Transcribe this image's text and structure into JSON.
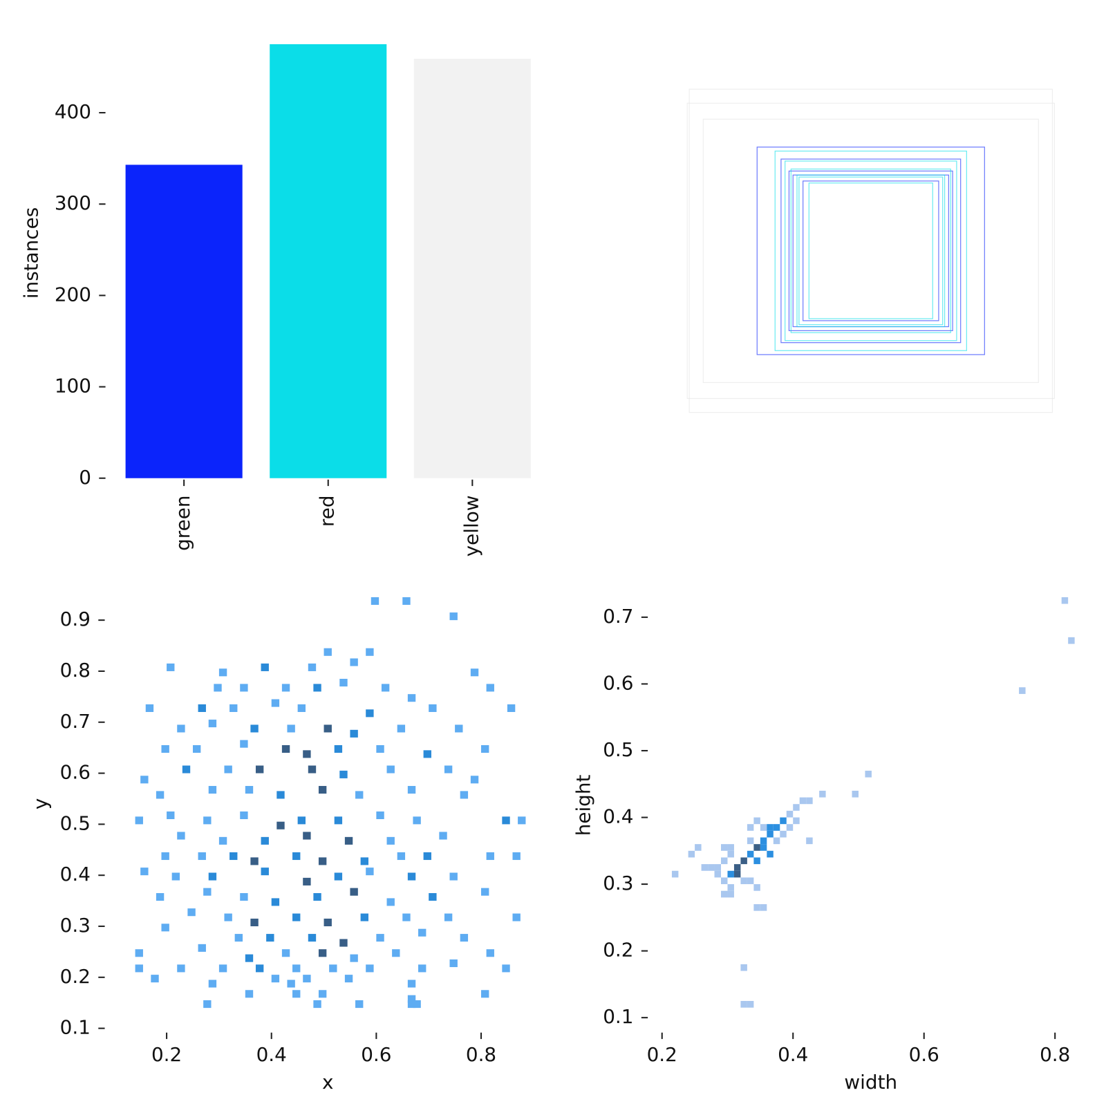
{
  "chart_data": [
    {
      "type": "bar",
      "ylabel": "instances",
      "categories": [
        "green",
        "red",
        "yellow"
      ],
      "values": [
        343,
        475,
        459
      ],
      "colors": [
        "#0b24fb",
        "#0bdde8",
        "#f2f2f2"
      ],
      "ylim": [
        0,
        475
      ],
      "yticks": [
        0,
        100,
        200,
        300,
        400
      ]
    },
    {
      "type": "boxes",
      "series": [
        {
          "name": "green",
          "color": "#0b24fb",
          "widths": [
            0.57,
            0.41,
            0.34,
            0.45,
            0.39
          ],
          "heights": [
            0.52,
            0.4,
            0.35,
            0.46,
            0.38
          ]
        },
        {
          "name": "red",
          "color": "#0bdde8",
          "widths": [
            0.48,
            0.43,
            0.37,
            0.4,
            0.31,
            0.36
          ],
          "heights": [
            0.5,
            0.45,
            0.38,
            0.41,
            0.34,
            0.37
          ]
        },
        {
          "name": "yellow",
          "color": "#e4e4e4",
          "widths": [
            0.91,
            0.84,
            0.92
          ],
          "heights": [
            0.81,
            0.66,
            0.74
          ]
        }
      ]
    },
    {
      "type": "heatmap",
      "xlabel": "x",
      "ylabel": "y",
      "xlim": [
        0.12,
        0.895
      ],
      "ylim": [
        0.1,
        0.945
      ],
      "xticks": [
        0.2,
        0.4,
        0.6,
        0.8
      ],
      "yticks": [
        0.1,
        0.2,
        0.3,
        0.4,
        0.5,
        0.6,
        0.7,
        0.8,
        0.9
      ],
      "xbin": 0.015,
      "ybin": 0.015,
      "colors": [
        "#5eacf2",
        "#2a8ad8",
        "#385e86"
      ],
      "cells": [
        [
          0.59,
          0.93,
          1
        ],
        [
          0.65,
          0.93,
          1
        ],
        [
          0.74,
          0.9,
          1
        ],
        [
          0.5,
          0.83,
          1
        ],
        [
          0.58,
          0.83,
          1
        ],
        [
          0.2,
          0.8,
          1
        ],
        [
          0.38,
          0.8,
          2
        ],
        [
          0.47,
          0.8,
          1
        ],
        [
          0.55,
          0.81,
          1
        ],
        [
          0.78,
          0.79,
          1
        ],
        [
          0.3,
          0.79,
          1
        ],
        [
          0.29,
          0.76,
          1
        ],
        [
          0.34,
          0.76,
          1
        ],
        [
          0.42,
          0.76,
          1
        ],
        [
          0.48,
          0.76,
          2
        ],
        [
          0.53,
          0.77,
          1
        ],
        [
          0.61,
          0.76,
          1
        ],
        [
          0.66,
          0.74,
          1
        ],
        [
          0.81,
          0.76,
          1
        ],
        [
          0.16,
          0.72,
          1
        ],
        [
          0.26,
          0.72,
          2
        ],
        [
          0.32,
          0.72,
          1
        ],
        [
          0.4,
          0.73,
          1
        ],
        [
          0.45,
          0.72,
          1
        ],
        [
          0.58,
          0.71,
          2
        ],
        [
          0.7,
          0.72,
          1
        ],
        [
          0.85,
          0.72,
          1
        ],
        [
          0.22,
          0.68,
          1
        ],
        [
          0.28,
          0.69,
          1
        ],
        [
          0.36,
          0.68,
          2
        ],
        [
          0.43,
          0.68,
          1
        ],
        [
          0.5,
          0.68,
          3
        ],
        [
          0.55,
          0.67,
          2
        ],
        [
          0.64,
          0.68,
          1
        ],
        [
          0.75,
          0.68,
          1
        ],
        [
          0.19,
          0.64,
          1
        ],
        [
          0.25,
          0.64,
          1
        ],
        [
          0.34,
          0.65,
          1
        ],
        [
          0.42,
          0.64,
          3
        ],
        [
          0.46,
          0.63,
          3
        ],
        [
          0.52,
          0.64,
          2
        ],
        [
          0.6,
          0.64,
          1
        ],
        [
          0.69,
          0.63,
          2
        ],
        [
          0.8,
          0.64,
          1
        ],
        [
          0.15,
          0.58,
          1
        ],
        [
          0.23,
          0.6,
          2
        ],
        [
          0.31,
          0.6,
          1
        ],
        [
          0.37,
          0.6,
          3
        ],
        [
          0.47,
          0.6,
          3
        ],
        [
          0.53,
          0.59,
          2
        ],
        [
          0.62,
          0.6,
          1
        ],
        [
          0.73,
          0.6,
          1
        ],
        [
          0.78,
          0.58,
          1
        ],
        [
          0.18,
          0.55,
          1
        ],
        [
          0.28,
          0.56,
          1
        ],
        [
          0.35,
          0.56,
          1
        ],
        [
          0.41,
          0.55,
          2
        ],
        [
          0.49,
          0.56,
          3
        ],
        [
          0.56,
          0.55,
          1
        ],
        [
          0.66,
          0.56,
          1
        ],
        [
          0.76,
          0.55,
          1
        ],
        [
          0.14,
          0.5,
          1
        ],
        [
          0.2,
          0.51,
          1
        ],
        [
          0.27,
          0.5,
          1
        ],
        [
          0.34,
          0.51,
          1
        ],
        [
          0.41,
          0.49,
          3
        ],
        [
          0.45,
          0.5,
          2
        ],
        [
          0.52,
          0.5,
          2
        ],
        [
          0.6,
          0.51,
          1
        ],
        [
          0.67,
          0.5,
          1
        ],
        [
          0.84,
          0.5,
          2
        ],
        [
          0.87,
          0.5,
          1
        ],
        [
          0.22,
          0.47,
          1
        ],
        [
          0.3,
          0.46,
          1
        ],
        [
          0.38,
          0.46,
          2
        ],
        [
          0.46,
          0.47,
          3
        ],
        [
          0.54,
          0.46,
          3
        ],
        [
          0.62,
          0.46,
          1
        ],
        [
          0.72,
          0.47,
          1
        ],
        [
          0.19,
          0.43,
          1
        ],
        [
          0.26,
          0.43,
          1
        ],
        [
          0.32,
          0.43,
          2
        ],
        [
          0.36,
          0.42,
          3
        ],
        [
          0.44,
          0.43,
          2
        ],
        [
          0.49,
          0.42,
          3
        ],
        [
          0.57,
          0.42,
          2
        ],
        [
          0.64,
          0.43,
          1
        ],
        [
          0.69,
          0.43,
          2
        ],
        [
          0.81,
          0.43,
          1
        ],
        [
          0.86,
          0.43,
          1
        ],
        [
          0.15,
          0.4,
          1
        ],
        [
          0.21,
          0.39,
          1
        ],
        [
          0.28,
          0.39,
          2
        ],
        [
          0.38,
          0.4,
          2
        ],
        [
          0.46,
          0.38,
          3
        ],
        [
          0.52,
          0.39,
          2
        ],
        [
          0.58,
          0.4,
          1
        ],
        [
          0.66,
          0.39,
          2
        ],
        [
          0.74,
          0.39,
          1
        ],
        [
          0.18,
          0.35,
          1
        ],
        [
          0.27,
          0.36,
          1
        ],
        [
          0.34,
          0.35,
          1
        ],
        [
          0.4,
          0.34,
          2
        ],
        [
          0.48,
          0.35,
          2
        ],
        [
          0.55,
          0.36,
          3
        ],
        [
          0.62,
          0.34,
          1
        ],
        [
          0.7,
          0.35,
          2
        ],
        [
          0.8,
          0.36,
          1
        ],
        [
          0.24,
          0.32,
          1
        ],
        [
          0.31,
          0.31,
          1
        ],
        [
          0.36,
          0.3,
          3
        ],
        [
          0.44,
          0.31,
          2
        ],
        [
          0.5,
          0.3,
          3
        ],
        [
          0.57,
          0.31,
          2
        ],
        [
          0.65,
          0.31,
          1
        ],
        [
          0.73,
          0.31,
          1
        ],
        [
          0.86,
          0.31,
          1
        ],
        [
          0.19,
          0.29,
          1
        ],
        [
          0.33,
          0.27,
          1
        ],
        [
          0.39,
          0.27,
          2
        ],
        [
          0.47,
          0.27,
          2
        ],
        [
          0.53,
          0.26,
          3
        ],
        [
          0.6,
          0.27,
          1
        ],
        [
          0.68,
          0.28,
          1
        ],
        [
          0.76,
          0.27,
          1
        ],
        [
          0.14,
          0.24,
          1
        ],
        [
          0.26,
          0.25,
          1
        ],
        [
          0.35,
          0.23,
          2
        ],
        [
          0.42,
          0.24,
          1
        ],
        [
          0.49,
          0.24,
          3
        ],
        [
          0.55,
          0.23,
          1
        ],
        [
          0.63,
          0.24,
          1
        ],
        [
          0.81,
          0.24,
          1
        ],
        [
          0.14,
          0.21,
          1
        ],
        [
          0.22,
          0.21,
          1
        ],
        [
          0.3,
          0.21,
          1
        ],
        [
          0.37,
          0.21,
          2
        ],
        [
          0.44,
          0.21,
          1
        ],
        [
          0.51,
          0.21,
          1
        ],
        [
          0.58,
          0.21,
          1
        ],
        [
          0.68,
          0.21,
          1
        ],
        [
          0.74,
          0.22,
          1
        ],
        [
          0.84,
          0.21,
          1
        ],
        [
          0.17,
          0.19,
          1
        ],
        [
          0.28,
          0.18,
          1
        ],
        [
          0.4,
          0.19,
          1
        ],
        [
          0.43,
          0.18,
          1
        ],
        [
          0.46,
          0.19,
          1
        ],
        [
          0.54,
          0.19,
          1
        ],
        [
          0.66,
          0.18,
          1
        ],
        [
          0.35,
          0.16,
          1
        ],
        [
          0.44,
          0.16,
          1
        ],
        [
          0.49,
          0.16,
          1
        ],
        [
          0.66,
          0.15,
          1
        ],
        [
          0.8,
          0.16,
          1
        ],
        [
          0.27,
          0.14,
          1
        ],
        [
          0.48,
          0.14,
          1
        ],
        [
          0.56,
          0.14,
          1
        ],
        [
          0.66,
          0.14,
          1
        ],
        [
          0.67,
          0.14,
          1
        ]
      ]
    },
    {
      "type": "heatmap",
      "xlabel": "width",
      "ylabel": "height",
      "xlim": [
        0.2,
        0.83
      ],
      "ylim": [
        0.1,
        0.73
      ],
      "xticks": [
        0.2,
        0.4,
        0.6,
        0.8
      ],
      "yticks": [
        0.1,
        0.2,
        0.3,
        0.4,
        0.5,
        0.6,
        0.7
      ],
      "xbin": 0.01,
      "ybin": 0.01,
      "colors": [
        "#a9c7ef",
        "#2c8fe0",
        "#3b5f86"
      ],
      "cells": [
        [
          0.215,
          0.31,
          1
        ],
        [
          0.24,
          0.34,
          1
        ],
        [
          0.25,
          0.35,
          1
        ],
        [
          0.26,
          0.32,
          1
        ],
        [
          0.27,
          0.32,
          1
        ],
        [
          0.28,
          0.32,
          1
        ],
        [
          0.29,
          0.33,
          1
        ],
        [
          0.29,
          0.35,
          1
        ],
        [
          0.3,
          0.35,
          1
        ],
        [
          0.3,
          0.34,
          1
        ],
        [
          0.28,
          0.31,
          1
        ],
        [
          0.29,
          0.3,
          1
        ],
        [
          0.3,
          0.29,
          1
        ],
        [
          0.29,
          0.28,
          1
        ],
        [
          0.3,
          0.28,
          1
        ],
        [
          0.3,
          0.31,
          2
        ],
        [
          0.31,
          0.32,
          3
        ],
        [
          0.32,
          0.33,
          3
        ],
        [
          0.31,
          0.31,
          3
        ],
        [
          0.32,
          0.3,
          1
        ],
        [
          0.33,
          0.3,
          1
        ],
        [
          0.34,
          0.29,
          1
        ],
        [
          0.33,
          0.34,
          2
        ],
        [
          0.34,
          0.35,
          3
        ],
        [
          0.35,
          0.36,
          2
        ],
        [
          0.36,
          0.37,
          2
        ],
        [
          0.35,
          0.35,
          2
        ],
        [
          0.33,
          0.36,
          1
        ],
        [
          0.33,
          0.38,
          1
        ],
        [
          0.34,
          0.39,
          1
        ],
        [
          0.35,
          0.38,
          1
        ],
        [
          0.36,
          0.38,
          2
        ],
        [
          0.37,
          0.38,
          2
        ],
        [
          0.37,
          0.36,
          1
        ],
        [
          0.38,
          0.39,
          2
        ],
        [
          0.38,
          0.37,
          1
        ],
        [
          0.39,
          0.38,
          1
        ],
        [
          0.39,
          0.4,
          1
        ],
        [
          0.4,
          0.41,
          1
        ],
        [
          0.41,
          0.42,
          1
        ],
        [
          0.42,
          0.42,
          1
        ],
        [
          0.4,
          0.39,
          1
        ],
        [
          0.36,
          0.34,
          2
        ],
        [
          0.34,
          0.33,
          2
        ],
        [
          0.44,
          0.43,
          1
        ],
        [
          0.49,
          0.43,
          1
        ],
        [
          0.51,
          0.46,
          1
        ],
        [
          0.42,
          0.36,
          1
        ],
        [
          0.34,
          0.26,
          1
        ],
        [
          0.35,
          0.26,
          1
        ],
        [
          0.32,
          0.17,
          1
        ],
        [
          0.32,
          0.115,
          1
        ],
        [
          0.33,
          0.115,
          1
        ],
        [
          0.745,
          0.585,
          1
        ],
        [
          0.81,
          0.72,
          1
        ],
        [
          0.82,
          0.66,
          1
        ]
      ]
    }
  ]
}
